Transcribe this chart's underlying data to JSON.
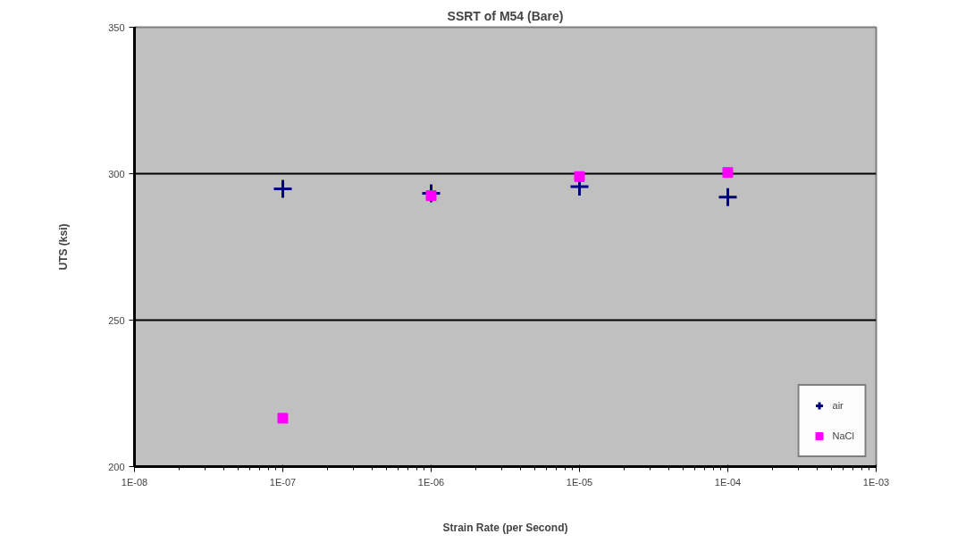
{
  "chart_data": {
    "type": "scatter",
    "title": "SSRT of M54 (Bare)",
    "xlabel": "Strain Rate (per Second)",
    "ylabel": "UTS (ksi)",
    "log": "x",
    "xlim": [
      1e-08,
      0.001
    ],
    "xticks": [
      {
        "value": 1e-08,
        "label": "1E-08"
      },
      {
        "value": 1e-07,
        "label": "1E-07"
      },
      {
        "value": 1e-06,
        "label": "1E-06"
      },
      {
        "value": 1e-05,
        "label": "1E-05"
      },
      {
        "value": 0.0001,
        "label": "1E-04"
      },
      {
        "value": 0.001,
        "label": "1E-03"
      }
    ],
    "ylim": [
      200,
      350
    ],
    "yticks": [
      200,
      250,
      300,
      350
    ],
    "grid": "y",
    "legend": "bottom right",
    "series": [
      {
        "name": "air",
        "color": "#000080",
        "marker": "cross",
        "x": [
          1e-07,
          1e-06,
          1e-05,
          0.0001
        ],
        "values": [
          294.8,
          293.3,
          295.6,
          292
        ]
      },
      {
        "name": "NaCl",
        "color": "#ff00ff",
        "marker": "square",
        "x": [
          1e-07,
          1e-06,
          1e-05,
          0.0001
        ],
        "values": [
          216.5,
          292.5,
          299,
          300.4
        ]
      }
    ]
  }
}
